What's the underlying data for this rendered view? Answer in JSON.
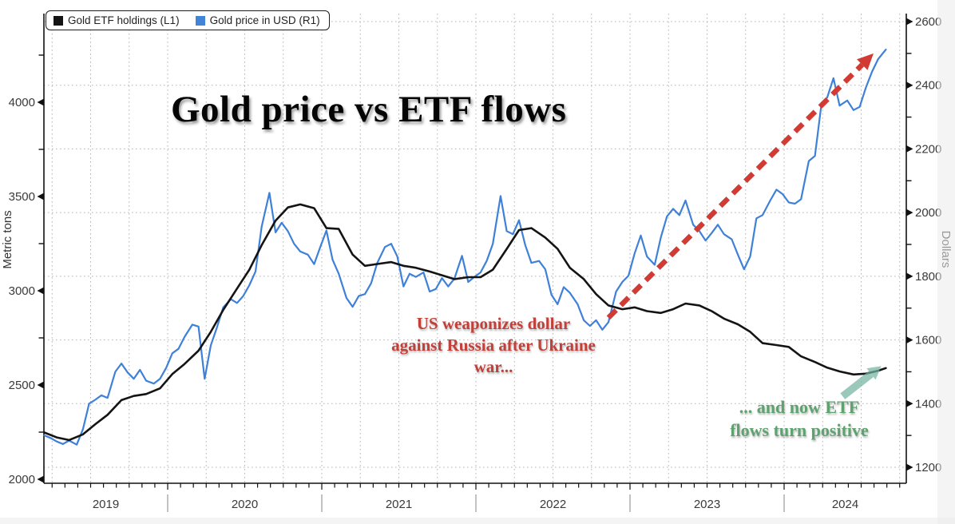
{
  "title": "Gold price vs ETF flows",
  "legend": {
    "items": [
      {
        "label": "Gold ETF holdings (L1)",
        "color": "#141414"
      },
      {
        "label": "Gold price in USD (R1)",
        "color": "#4285d8"
      }
    ]
  },
  "annotations": {
    "red_note": {
      "lines": [
        "US weaponizes dollar",
        "against Russia after Ukraine",
        "war..."
      ],
      "color": "#c2403a"
    },
    "green_note": {
      "lines": [
        "... and now ETF",
        "flows turn positive"
      ],
      "color": "#5da26f"
    },
    "red_arrow": {
      "color": "#d23b33",
      "from": {
        "t": 2022.86,
        "price": 1670
      },
      "to": {
        "t": 2024.58,
        "price": 2500
      }
    },
    "teal_arrow": {
      "color": "#74b4a0",
      "from": {
        "t": 2024.38,
        "tons": 2440
      },
      "to": {
        "t": 2024.63,
        "tons": 2600
      }
    }
  },
  "chart_data": {
    "type": "line",
    "title": "Gold price vs ETF flows",
    "x_axis": {
      "years": [
        2019,
        2020,
        2021,
        2022,
        2023,
        2024
      ],
      "start": 2019.197,
      "end": 2024.79,
      "minor_tick_months": 1,
      "grid_interval_years": 0.25
    },
    "left_axis": {
      "title": "Metric tons",
      "min": 2000,
      "max": 4000,
      "major_step": 500,
      "minor_step": 250,
      "tick_color": "#3a3a3a"
    },
    "right_axis": {
      "title": "Dollars",
      "min": 1200,
      "max": 2600,
      "major_step": 200,
      "minor_step": 100,
      "tick_color": "#3a3a3a"
    },
    "grid": {
      "horizontal": "right-axis-major",
      "vertical": "quarterly",
      "style": "dotted",
      "color": "#b5b5b5"
    },
    "series": [
      {
        "name": "Gold ETF holdings (L1)",
        "axis": "left",
        "unit": "metric tons",
        "color": "#141414",
        "points": [
          [
            2019.2,
            2248
          ],
          [
            2019.28,
            2222
          ],
          [
            2019.36,
            2208
          ],
          [
            2019.45,
            2238
          ],
          [
            2019.53,
            2292
          ],
          [
            2019.61,
            2342
          ],
          [
            2019.7,
            2420
          ],
          [
            2019.78,
            2442
          ],
          [
            2019.86,
            2452
          ],
          [
            2019.95,
            2482
          ],
          [
            2020.03,
            2558
          ],
          [
            2020.11,
            2612
          ],
          [
            2020.2,
            2682
          ],
          [
            2020.28,
            2782
          ],
          [
            2020.36,
            2898
          ],
          [
            2020.45,
            3012
          ],
          [
            2020.53,
            3112
          ],
          [
            2020.61,
            3242
          ],
          [
            2020.7,
            3372
          ],
          [
            2020.78,
            3442
          ],
          [
            2020.86,
            3458
          ],
          [
            2020.95,
            3438
          ],
          [
            2021.03,
            3332
          ],
          [
            2021.11,
            3328
          ],
          [
            2021.2,
            3192
          ],
          [
            2021.28,
            3132
          ],
          [
            2021.36,
            3142
          ],
          [
            2021.45,
            3152
          ],
          [
            2021.53,
            3132
          ],
          [
            2021.61,
            3122
          ],
          [
            2021.7,
            3102
          ],
          [
            2021.78,
            3082
          ],
          [
            2021.86,
            3062
          ],
          [
            2021.95,
            3072
          ],
          [
            2022.03,
            3072
          ],
          [
            2022.11,
            3112
          ],
          [
            2022.2,
            3222
          ],
          [
            2022.28,
            3322
          ],
          [
            2022.36,
            3332
          ],
          [
            2022.45,
            3282
          ],
          [
            2022.53,
            3222
          ],
          [
            2022.61,
            3122
          ],
          [
            2022.7,
            3062
          ],
          [
            2022.78,
            2982
          ],
          [
            2022.86,
            2922
          ],
          [
            2022.95,
            2902
          ],
          [
            2023.03,
            2912
          ],
          [
            2023.11,
            2892
          ],
          [
            2023.2,
            2882
          ],
          [
            2023.28,
            2902
          ],
          [
            2023.36,
            2932
          ],
          [
            2023.45,
            2922
          ],
          [
            2023.53,
            2892
          ],
          [
            2023.61,
            2852
          ],
          [
            2023.7,
            2822
          ],
          [
            2023.78,
            2782
          ],
          [
            2023.86,
            2722
          ],
          [
            2023.95,
            2712
          ],
          [
            2024.03,
            2702
          ],
          [
            2024.11,
            2652
          ],
          [
            2024.2,
            2622
          ],
          [
            2024.28,
            2592
          ],
          [
            2024.36,
            2572
          ],
          [
            2024.45,
            2556
          ],
          [
            2024.53,
            2560
          ],
          [
            2024.61,
            2576
          ],
          [
            2024.66,
            2590
          ]
        ]
      },
      {
        "name": "Gold price in USD (R1)",
        "axis": "right",
        "unit": "USD per troy ounce",
        "color": "#3f80d8",
        "points": [
          [
            2019.2,
            1300
          ],
          [
            2019.24,
            1292
          ],
          [
            2019.28,
            1281
          ],
          [
            2019.32,
            1273
          ],
          [
            2019.36,
            1284
          ],
          [
            2019.41,
            1271
          ],
          [
            2019.45,
            1320
          ],
          [
            2019.49,
            1400
          ],
          [
            2019.53,
            1412
          ],
          [
            2019.57,
            1426
          ],
          [
            2019.61,
            1418
          ],
          [
            2019.66,
            1500
          ],
          [
            2019.7,
            1526
          ],
          [
            2019.74,
            1498
          ],
          [
            2019.78,
            1478
          ],
          [
            2019.82,
            1506
          ],
          [
            2019.86,
            1472
          ],
          [
            2019.91,
            1463
          ],
          [
            2019.95,
            1478
          ],
          [
            2019.99,
            1512
          ],
          [
            2020.03,
            1558
          ],
          [
            2020.07,
            1572
          ],
          [
            2020.11,
            1610
          ],
          [
            2020.16,
            1648
          ],
          [
            2020.2,
            1642
          ],
          [
            2020.24,
            1478
          ],
          [
            2020.28,
            1583
          ],
          [
            2020.32,
            1640
          ],
          [
            2020.36,
            1702
          ],
          [
            2020.41,
            1728
          ],
          [
            2020.45,
            1716
          ],
          [
            2020.49,
            1738
          ],
          [
            2020.53,
            1772
          ],
          [
            2020.57,
            1815
          ],
          [
            2020.61,
            1956
          ],
          [
            2020.66,
            2062
          ],
          [
            2020.7,
            1938
          ],
          [
            2020.74,
            1968
          ],
          [
            2020.78,
            1942
          ],
          [
            2020.82,
            1902
          ],
          [
            2020.86,
            1878
          ],
          [
            2020.91,
            1868
          ],
          [
            2020.95,
            1838
          ],
          [
            2020.99,
            1892
          ],
          [
            2021.03,
            1944
          ],
          [
            2021.07,
            1852
          ],
          [
            2021.11,
            1808
          ],
          [
            2021.16,
            1732
          ],
          [
            2021.2,
            1704
          ],
          [
            2021.24,
            1738
          ],
          [
            2021.28,
            1744
          ],
          [
            2021.32,
            1778
          ],
          [
            2021.36,
            1842
          ],
          [
            2021.41,
            1892
          ],
          [
            2021.45,
            1902
          ],
          [
            2021.49,
            1862
          ],
          [
            2021.53,
            1768
          ],
          [
            2021.57,
            1808
          ],
          [
            2021.61,
            1798
          ],
          [
            2021.66,
            1812
          ],
          [
            2021.7,
            1752
          ],
          [
            2021.74,
            1760
          ],
          [
            2021.78,
            1794
          ],
          [
            2021.82,
            1768
          ],
          [
            2021.86,
            1792
          ],
          [
            2021.91,
            1864
          ],
          [
            2021.95,
            1782
          ],
          [
            2021.99,
            1798
          ],
          [
            2022.03,
            1812
          ],
          [
            2022.07,
            1848
          ],
          [
            2022.11,
            1902
          ],
          [
            2022.16,
            2052
          ],
          [
            2022.2,
            1942
          ],
          [
            2022.24,
            1932
          ],
          [
            2022.28,
            1976
          ],
          [
            2022.32,
            1898
          ],
          [
            2022.36,
            1842
          ],
          [
            2022.41,
            1848
          ],
          [
            2022.45,
            1822
          ],
          [
            2022.49,
            1742
          ],
          [
            2022.53,
            1712
          ],
          [
            2022.57,
            1766
          ],
          [
            2022.61,
            1748
          ],
          [
            2022.66,
            1712
          ],
          [
            2022.7,
            1662
          ],
          [
            2022.74,
            1644
          ],
          [
            2022.78,
            1662
          ],
          [
            2022.82,
            1632
          ],
          [
            2022.86,
            1656
          ],
          [
            2022.91,
            1752
          ],
          [
            2022.95,
            1782
          ],
          [
            2022.99,
            1802
          ],
          [
            2023.03,
            1872
          ],
          [
            2023.07,
            1928
          ],
          [
            2023.11,
            1862
          ],
          [
            2023.16,
            1836
          ],
          [
            2023.2,
            1922
          ],
          [
            2023.24,
            1988
          ],
          [
            2023.28,
            2012
          ],
          [
            2023.32,
            1992
          ],
          [
            2023.36,
            2038
          ],
          [
            2023.41,
            1962
          ],
          [
            2023.45,
            1942
          ],
          [
            2023.49,
            1912
          ],
          [
            2023.53,
            1936
          ],
          [
            2023.57,
            1962
          ],
          [
            2023.61,
            1932
          ],
          [
            2023.66,
            1916
          ],
          [
            2023.7,
            1868
          ],
          [
            2023.74,
            1822
          ],
          [
            2023.78,
            1862
          ],
          [
            2023.82,
            1982
          ],
          [
            2023.86,
            1992
          ],
          [
            2023.91,
            2038
          ],
          [
            2023.95,
            2072
          ],
          [
            2023.99,
            2058
          ],
          [
            2024.03,
            2032
          ],
          [
            2024.07,
            2028
          ],
          [
            2024.11,
            2042
          ],
          [
            2024.16,
            2162
          ],
          [
            2024.2,
            2178
          ],
          [
            2024.24,
            2332
          ],
          [
            2024.28,
            2362
          ],
          [
            2024.32,
            2422
          ],
          [
            2024.36,
            2336
          ],
          [
            2024.41,
            2352
          ],
          [
            2024.45,
            2322
          ],
          [
            2024.49,
            2332
          ],
          [
            2024.53,
            2392
          ],
          [
            2024.57,
            2442
          ],
          [
            2024.61,
            2482
          ],
          [
            2024.66,
            2512
          ]
        ]
      }
    ]
  }
}
